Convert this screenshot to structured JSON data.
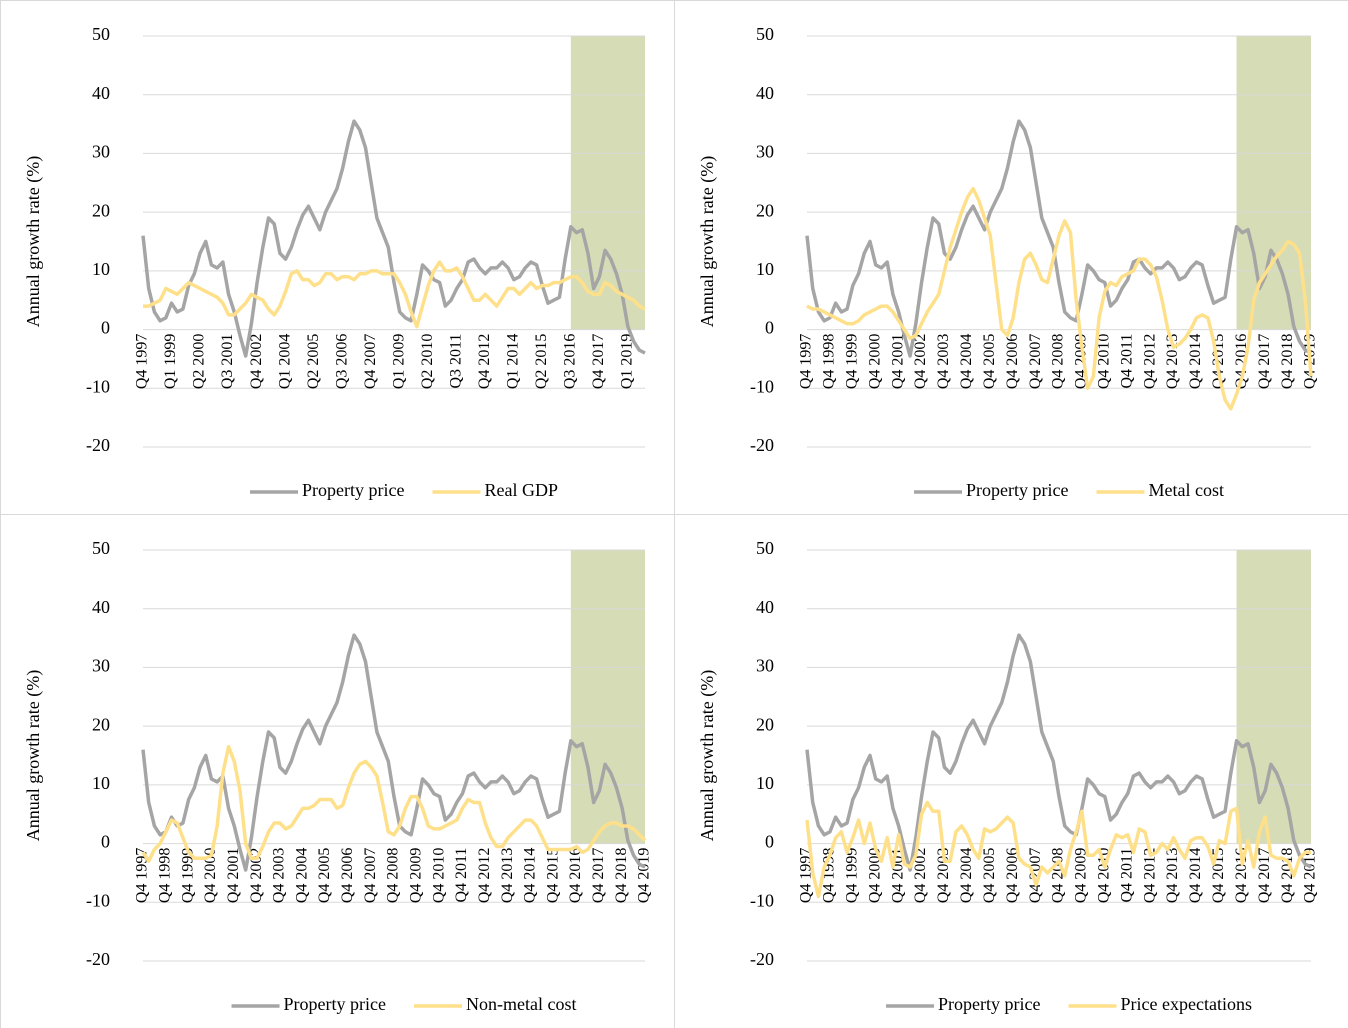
{
  "chart_data": [
    {
      "type": "line",
      "y_axis_label": "Annual growth rate (%)",
      "categories": [
        "Q4 1997",
        null,
        null,
        null,
        null,
        "Q1 1999",
        null,
        null,
        null,
        null,
        "Q2 2000",
        null,
        null,
        null,
        null,
        "Q3 2001",
        null,
        null,
        null,
        null,
        "Q4 2002",
        null,
        null,
        null,
        null,
        "Q1 2004",
        null,
        null,
        null,
        null,
        "Q2 2005",
        null,
        null,
        null,
        null,
        "Q3 2006",
        null,
        null,
        null,
        null,
        "Q4 2007",
        null,
        null,
        null,
        null,
        "Q1 2009",
        null,
        null,
        null,
        null,
        "Q2 2010",
        null,
        null,
        null,
        null,
        "Q3 2011",
        null,
        null,
        null,
        null,
        "Q4 2012",
        null,
        null,
        null,
        null,
        "Q1 2014",
        null,
        null,
        null,
        null,
        "Q2 2015",
        null,
        null,
        null,
        null,
        "Q3 2016",
        null,
        null,
        null,
        null,
        "Q4 2017",
        null,
        null,
        null,
        null,
        "Q1 2019",
        null,
        null,
        null
      ],
      "series": [
        {
          "name": "Property price",
          "color": "#a5a5a5",
          "values": [
            16,
            7,
            3,
            1.5,
            2,
            4.5,
            3,
            3.5,
            7.5,
            9.5,
            13,
            15,
            11,
            10.5,
            11.5,
            6,
            3,
            -1,
            -4.5,
            1,
            8,
            14,
            19,
            18,
            13,
            12,
            14,
            17,
            19.5,
            21,
            19,
            17,
            20,
            22,
            24,
            27.5,
            32,
            35.5,
            34,
            31,
            25,
            19,
            16.5,
            14,
            8,
            3,
            2,
            1.5,
            6,
            11,
            10,
            8.5,
            8,
            4,
            5,
            7,
            8.5,
            11.5,
            12,
            10.5,
            9.5,
            10.5,
            10.5,
            11.5,
            10.5,
            8.5,
            9,
            10.5,
            11.5,
            11,
            7.5,
            4.5,
            5,
            5.5,
            12,
            17.5,
            16.5,
            17,
            13,
            7,
            9,
            13.5,
            12,
            9.5,
            6,
            0.5,
            -2,
            -3.5,
            -4
          ]
        },
        {
          "name": "Real GDP",
          "color": "#ffe08a",
          "values": [
            4,
            4,
            4.5,
            5,
            7,
            6.5,
            6,
            7,
            8,
            7.5,
            7,
            6.5,
            6,
            5.5,
            4.5,
            2.5,
            2.5,
            3.5,
            4.5,
            6,
            5.5,
            5,
            3.5,
            2.5,
            4,
            6.5,
            9.5,
            10,
            8.5,
            8.5,
            7.5,
            8,
            9.5,
            9.5,
            8.5,
            9,
            9,
            8.5,
            9.5,
            9.5,
            10,
            10,
            9.5,
            9.5,
            9.5,
            8,
            6,
            3,
            0.5,
            4,
            7.5,
            10,
            11.5,
            10,
            10,
            10.5,
            9,
            7,
            5,
            5,
            6,
            5,
            4,
            5.5,
            7,
            7,
            6,
            7,
            8,
            7,
            7.5,
            7.5,
            8,
            8,
            8.5,
            9,
            9,
            8,
            6.5,
            6,
            6,
            8,
            7.5,
            6.5,
            6,
            5.5,
            5,
            4,
            3.5
          ]
        }
      ],
      "ylim": [
        -20,
        50
      ],
      "yticks": [
        -20,
        -10,
        0,
        10,
        20,
        30,
        40,
        50
      ],
      "grid": true,
      "shade": {
        "start_index": 75,
        "color": "#d6dcb6"
      }
    },
    {
      "type": "line",
      "y_axis_label": "Annual growth rate (%)",
      "categories": [
        "Q4 1997",
        null,
        null,
        null,
        "Q4 1998",
        null,
        null,
        null,
        "Q4 1999",
        null,
        null,
        null,
        "Q4 2000",
        null,
        null,
        null,
        "Q4 2001",
        null,
        null,
        null,
        "Q4 2002",
        null,
        null,
        null,
        "Q4 2003",
        null,
        null,
        null,
        "Q4 2004",
        null,
        null,
        null,
        "Q4 2005",
        null,
        null,
        null,
        "Q4 2006",
        null,
        null,
        null,
        "Q4 2007",
        null,
        null,
        null,
        "Q4 2008",
        null,
        null,
        null,
        "Q4 2009",
        null,
        null,
        null,
        "Q4 2010",
        null,
        null,
        null,
        "Q4 2011",
        null,
        null,
        null,
        "Q4 2012",
        null,
        null,
        null,
        "Q4 2013",
        null,
        null,
        null,
        "Q4 2014",
        null,
        null,
        null,
        "Q4 2015",
        null,
        null,
        null,
        "Q4 2016",
        null,
        null,
        null,
        "Q4 2017",
        null,
        null,
        null,
        "Q4 2018",
        null,
        null,
        null,
        "Q4 2019"
      ],
      "series": [
        {
          "name": "Property price",
          "color": "#a5a5a5",
          "values": [
            16,
            7,
            3,
            1.5,
            2,
            4.5,
            3,
            3.5,
            7.5,
            9.5,
            13,
            15,
            11,
            10.5,
            11.5,
            6,
            3,
            -1,
            -4.5,
            1,
            8,
            14,
            19,
            18,
            13,
            12,
            14,
            17,
            19.5,
            21,
            19,
            17,
            20,
            22,
            24,
            27.5,
            32,
            35.5,
            34,
            31,
            25,
            19,
            16.5,
            14,
            8,
            3,
            2,
            1.5,
            6,
            11,
            10,
            8.5,
            8,
            4,
            5,
            7,
            8.5,
            11.5,
            12,
            10.5,
            9.5,
            10.5,
            10.5,
            11.5,
            10.5,
            8.5,
            9,
            10.5,
            11.5,
            11,
            7.5,
            4.5,
            5,
            5.5,
            12,
            17.5,
            16.5,
            17,
            13,
            7,
            9,
            13.5,
            12,
            9.5,
            6,
            0.5,
            -2,
            -3.5,
            -4
          ]
        },
        {
          "name": "Metal cost",
          "color": "#ffe08a",
          "values": [
            4,
            3.5,
            3.5,
            3,
            2.5,
            2,
            1.5,
            1,
            1,
            1.5,
            2.5,
            3,
            3.5,
            4,
            4,
            3,
            1.5,
            0,
            -1.5,
            -1,
            1,
            3,
            4.5,
            6,
            10,
            14,
            17,
            20,
            22.5,
            24,
            22,
            19,
            16,
            8,
            0,
            -1,
            2,
            8,
            12,
            13,
            11,
            8.5,
            8,
            12,
            16,
            18.5,
            16.5,
            5,
            -3,
            -10,
            -8,
            2,
            6.5,
            8,
            7.5,
            9,
            9.5,
            10,
            12,
            12,
            11,
            9,
            5,
            0,
            -3,
            -2.5,
            -1.5,
            0,
            2,
            2.5,
            2,
            -2,
            -8,
            -12,
            -13.5,
            -11,
            -8,
            -3,
            5,
            8,
            9.5,
            11,
            12.5,
            13.5,
            15,
            14.5,
            13,
            5,
            -8
          ]
        }
      ],
      "ylim": [
        -20,
        50
      ],
      "yticks": [
        -20,
        -10,
        0,
        10,
        20,
        30,
        40,
        50
      ],
      "grid": true,
      "shade": {
        "start_index": 75,
        "color": "#d6dcb6"
      }
    },
    {
      "type": "line",
      "y_axis_label": "Annual growth rate (%)",
      "categories": [
        "Q4 1997",
        null,
        null,
        null,
        "Q4 1998",
        null,
        null,
        null,
        "Q4 1999",
        null,
        null,
        null,
        "Q4 2000",
        null,
        null,
        null,
        "Q4 2001",
        null,
        null,
        null,
        "Q4 2002",
        null,
        null,
        null,
        "Q4 2003",
        null,
        null,
        null,
        "Q4 2004",
        null,
        null,
        null,
        "Q4 2005",
        null,
        null,
        null,
        "Q4 2006",
        null,
        null,
        null,
        "Q4 2007",
        null,
        null,
        null,
        "Q4 2008",
        null,
        null,
        null,
        "Q4 2009",
        null,
        null,
        null,
        "Q4 2010",
        null,
        null,
        null,
        "Q4 2011",
        null,
        null,
        null,
        "Q4 2012",
        null,
        null,
        null,
        "Q4 2013",
        null,
        null,
        null,
        "Q4 2014",
        null,
        null,
        null,
        "Q4 2015",
        null,
        null,
        null,
        "Q4 2016",
        null,
        null,
        null,
        "Q4 2017",
        null,
        null,
        null,
        "Q4 2018",
        null,
        null,
        null,
        "Q4 2019"
      ],
      "series": [
        {
          "name": "Property price",
          "color": "#a5a5a5",
          "values": [
            16,
            7,
            3,
            1.5,
            2,
            4.5,
            3,
            3.5,
            7.5,
            9.5,
            13,
            15,
            11,
            10.5,
            11.5,
            6,
            3,
            -1,
            -4.5,
            1,
            8,
            14,
            19,
            18,
            13,
            12,
            14,
            17,
            19.5,
            21,
            19,
            17,
            20,
            22,
            24,
            27.5,
            32,
            35.5,
            34,
            31,
            25,
            19,
            16.5,
            14,
            8,
            3,
            2,
            1.5,
            6,
            11,
            10,
            8.5,
            8,
            4,
            5,
            7,
            8.5,
            11.5,
            12,
            10.5,
            9.5,
            10.5,
            10.5,
            11.5,
            10.5,
            8.5,
            9,
            10.5,
            11.5,
            11,
            7.5,
            4.5,
            5,
            5.5,
            12,
            17.5,
            16.5,
            17,
            13,
            7,
            9,
            13.5,
            12,
            9.5,
            6,
            0.5,
            -2,
            -3.5,
            -4
          ]
        },
        {
          "name": "Non-metal cost",
          "color": "#ffe08a",
          "values": [
            -1.5,
            -3,
            -1,
            0,
            2,
            4,
            3.5,
            1,
            -1.5,
            -2.5,
            -2.5,
            -2.5,
            -2,
            3,
            12,
            16.5,
            14,
            9,
            0,
            -2.5,
            -2.5,
            -0.5,
            2,
            3.5,
            3.5,
            2.5,
            3,
            4.5,
            6,
            6,
            6.5,
            7.5,
            7.5,
            7.5,
            6,
            6.5,
            9.5,
            12,
            13.5,
            14,
            13,
            11.5,
            7,
            2,
            1.5,
            3,
            6,
            8,
            8,
            6,
            3,
            2.5,
            2.5,
            3,
            3.5,
            4,
            6,
            7.5,
            7,
            7,
            3.5,
            1,
            -0.5,
            -0.5,
            1,
            2,
            3,
            4,
            4,
            3,
            1,
            -1,
            -1,
            -1,
            -1,
            -1,
            -0.5,
            -1.5,
            -1,
            0.5,
            2,
            3,
            3.5,
            3.5,
            3,
            3,
            2.5,
            1.5,
            0.5
          ]
        }
      ],
      "ylim": [
        -20,
        50
      ],
      "yticks": [
        -20,
        -10,
        0,
        10,
        20,
        30,
        40,
        50
      ],
      "grid": true,
      "shade": {
        "start_index": 75,
        "color": "#d6dcb6"
      }
    },
    {
      "type": "line",
      "y_axis_label": "Annual growth rate (%)",
      "categories": [
        "Q4 1997",
        null,
        null,
        null,
        "Q4 1998",
        null,
        null,
        null,
        "Q4 1999",
        null,
        null,
        null,
        "Q4 2000",
        null,
        null,
        null,
        "Q4 2001",
        null,
        null,
        null,
        "Q4 2002",
        null,
        null,
        null,
        "Q4 2003",
        null,
        null,
        null,
        "Q4 2004",
        null,
        null,
        null,
        "Q4 2005",
        null,
        null,
        null,
        "Q4 2006",
        null,
        null,
        null,
        "Q4 2007",
        null,
        null,
        null,
        "Q4 2008",
        null,
        null,
        null,
        "Q4 2009",
        null,
        null,
        null,
        "Q4 2010",
        null,
        null,
        null,
        "Q4 2011",
        null,
        null,
        null,
        "Q4 2012",
        null,
        null,
        null,
        "Q4 2013",
        null,
        null,
        null,
        "Q4 2014",
        null,
        null,
        null,
        "Q4 2015",
        null,
        null,
        null,
        "Q4 2016",
        null,
        null,
        null,
        "Q4 2017",
        null,
        null,
        null,
        "Q4 2018",
        null,
        null,
        null,
        "Q4 2019"
      ],
      "series": [
        {
          "name": "Property price",
          "color": "#a5a5a5",
          "values": [
            16,
            7,
            3,
            1.5,
            2,
            4.5,
            3,
            3.5,
            7.5,
            9.5,
            13,
            15,
            11,
            10.5,
            11.5,
            6,
            3,
            -1,
            -4.5,
            1,
            8,
            14,
            19,
            18,
            13,
            12,
            14,
            17,
            19.5,
            21,
            19,
            17,
            20,
            22,
            24,
            27.5,
            32,
            35.5,
            34,
            31,
            25,
            19,
            16.5,
            14,
            8,
            3,
            2,
            1.5,
            6,
            11,
            10,
            8.5,
            8,
            4,
            5,
            7,
            8.5,
            11.5,
            12,
            10.5,
            9.5,
            10.5,
            10.5,
            11.5,
            10.5,
            8.5,
            9,
            10.5,
            11.5,
            11,
            7.5,
            4.5,
            5,
            5.5,
            12,
            17.5,
            16.5,
            17,
            13,
            7,
            9,
            13.5,
            12,
            9.5,
            6,
            0.5,
            -2,
            -3.5,
            -4
          ]
        },
        {
          "name": "Price expectations",
          "color": "#ffe08a",
          "values": [
            4,
            -5,
            -9,
            -4,
            -2,
            1,
            2,
            -1.5,
            1,
            4,
            0,
            3.5,
            -1,
            -3,
            1,
            -4,
            1.5,
            -3.5,
            -4,
            -2,
            5,
            7,
            5.5,
            5.5,
            -3,
            -3,
            2,
            3,
            1.5,
            -1,
            -2.5,
            2.5,
            2,
            2.5,
            3.5,
            4.5,
            3.5,
            -2.5,
            -3.5,
            -4,
            -7,
            -4,
            -5,
            -4,
            -3,
            -5.5,
            -1,
            2,
            5.5,
            -2,
            -2,
            -1,
            -4,
            -1,
            1.5,
            1,
            1.5,
            -1.5,
            2.5,
            2,
            -2,
            -1.5,
            0,
            -1,
            1,
            -1,
            -2.5,
            0.5,
            1,
            1,
            -0.5,
            -3.5,
            0.5,
            0,
            5.5,
            6,
            -3.5,
            0.5,
            -4,
            2,
            4.5,
            -2,
            -2.5,
            -2.5,
            -3,
            -5.5,
            -2.5,
            -1.5,
            -1.5
          ]
        }
      ],
      "ylim": [
        -20,
        50
      ],
      "yticks": [
        -20,
        -10,
        0,
        10,
        20,
        30,
        40,
        50
      ],
      "grid": true,
      "shade": {
        "start_index": 75,
        "color": "#d6dcb6"
      }
    }
  ]
}
